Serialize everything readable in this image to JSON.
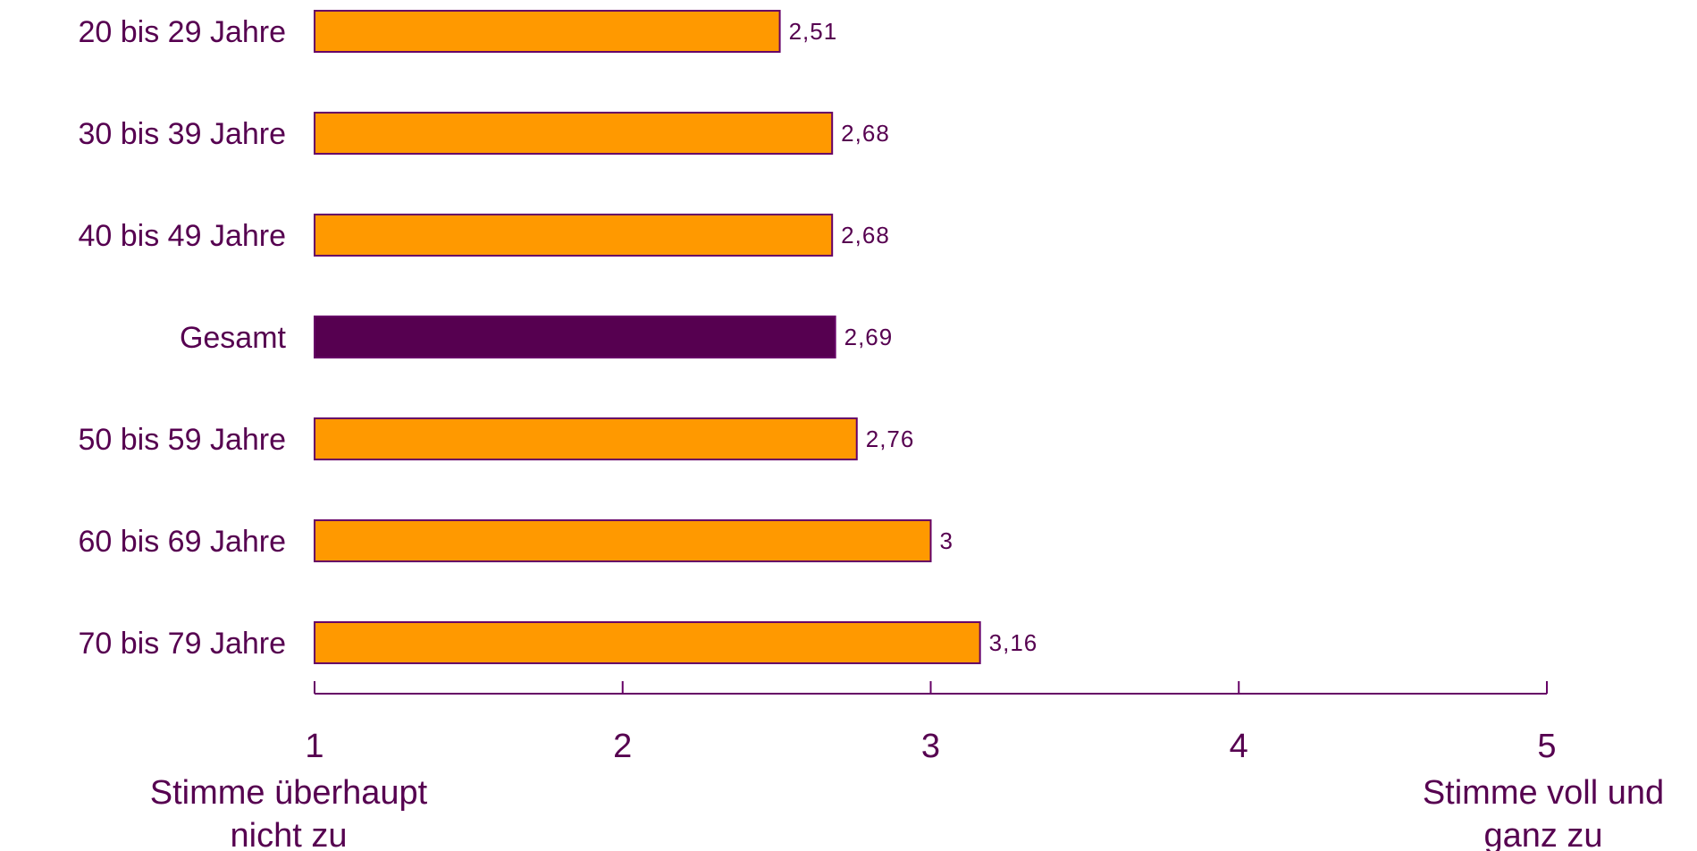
{
  "chart_data": {
    "type": "bar",
    "orientation": "horizontal",
    "categories": [
      "20 bis 29 Jahre",
      "30 bis 39 Jahre",
      "40 bis 49 Jahre",
      "Gesamt",
      "50 bis 59 Jahre",
      "60 bis 69 Jahre",
      "70 bis 79 Jahre"
    ],
    "values": [
      2.51,
      2.68,
      2.68,
      2.69,
      2.76,
      3,
      3.16
    ],
    "value_labels": [
      "2,51",
      "2,68",
      "2,68",
      "2,69",
      "2,76",
      "3",
      "3,16"
    ],
    "highlight": [
      false,
      false,
      false,
      true,
      false,
      false,
      false
    ],
    "xlim": [
      1,
      5
    ],
    "xticks": [
      1,
      2,
      3,
      4,
      5
    ],
    "xtick_labels": [
      "1",
      "2",
      "3",
      "4",
      "5"
    ],
    "scale_low_label": [
      "Stimme überhaupt",
      "nicht zu"
    ],
    "scale_high_label": [
      "Stimme voll und",
      "ganz zu"
    ],
    "grid": false,
    "legend": "none",
    "colors": {
      "bar": "#FF9900",
      "bar_border": "#660066",
      "highlight_bar": "#560050",
      "text": "#560050",
      "axis": "#660066"
    }
  }
}
